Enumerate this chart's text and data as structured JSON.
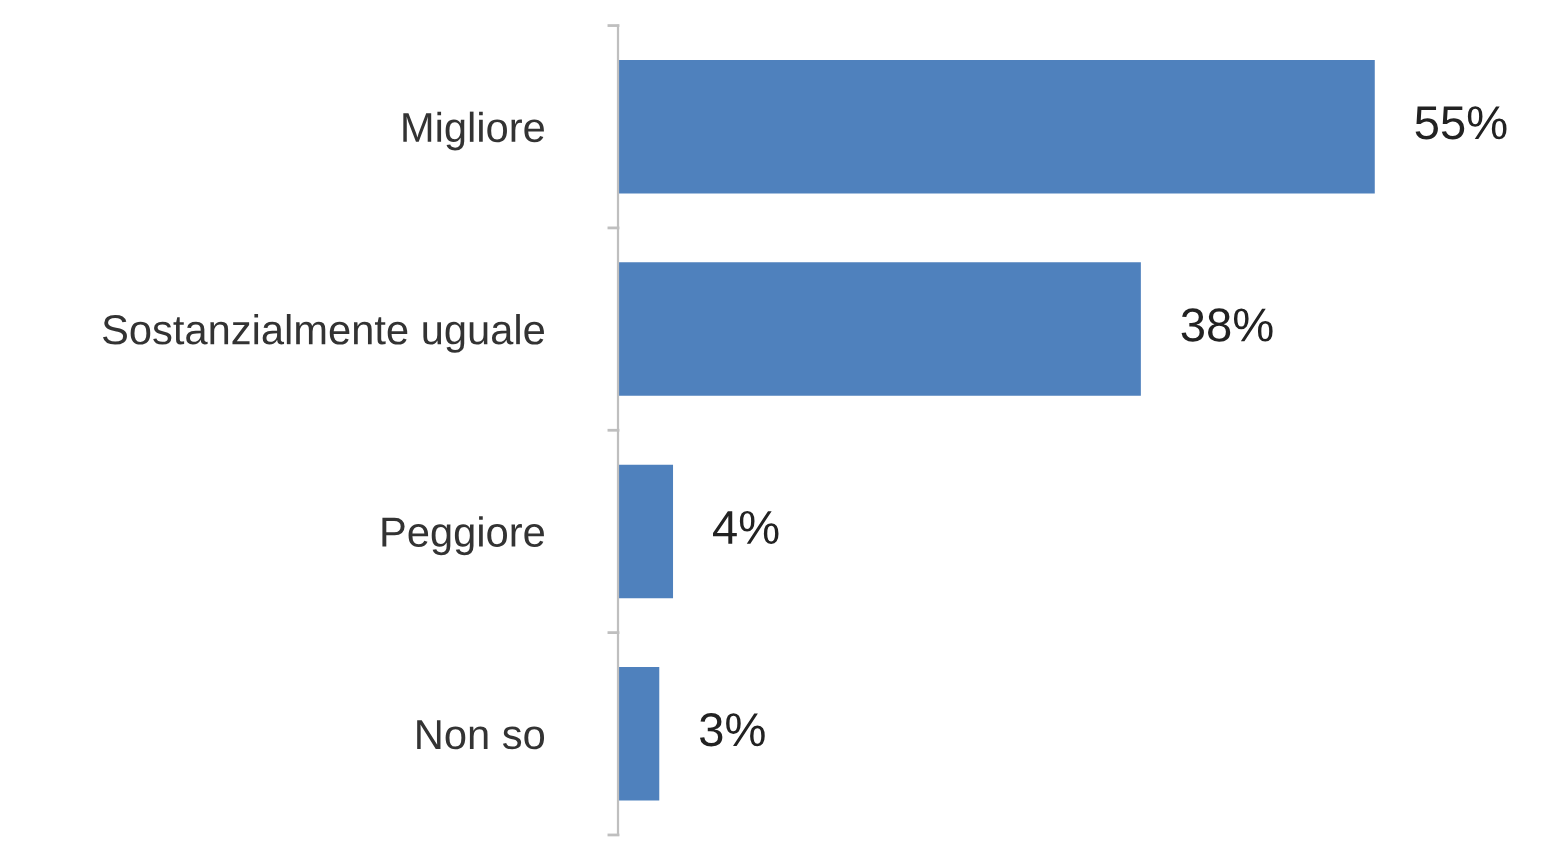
{
  "chart_data": {
    "type": "bar",
    "orientation": "horizontal",
    "categories": [
      "Migliore",
      "Sostanzialmente uguale",
      "Peggiore",
      "Non so"
    ],
    "values": [
      55,
      38,
      4,
      3
    ],
    "color": "#4f81bd",
    "value_labels": [
      "55%",
      "38%",
      "4%",
      "3%"
    ],
    "grid": false,
    "legend": false
  }
}
